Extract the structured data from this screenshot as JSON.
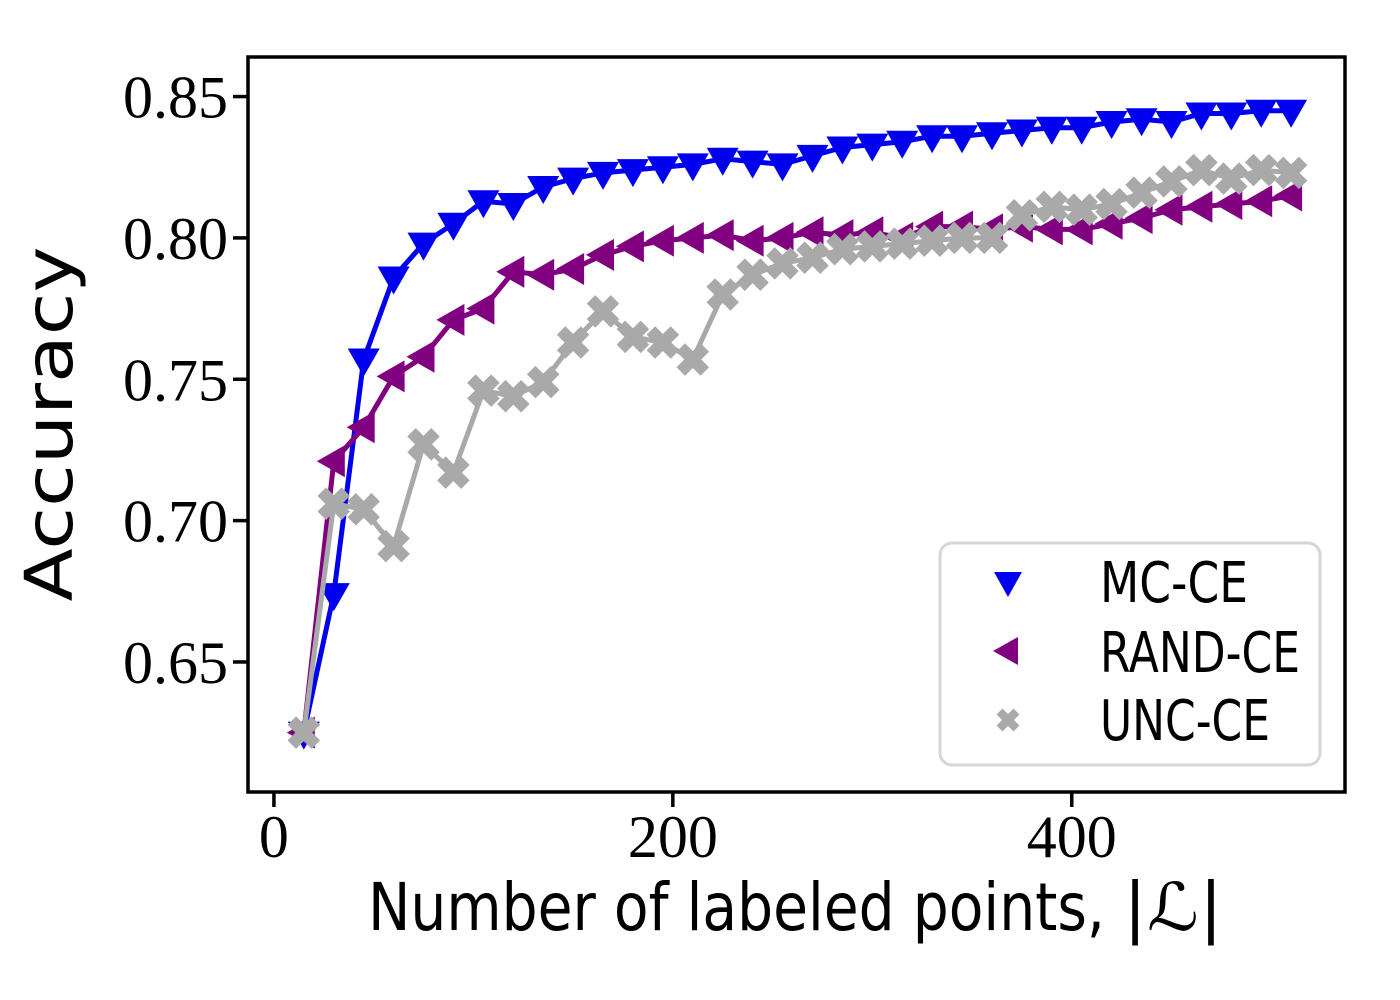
{
  "figure": {
    "background": "#ffffff"
  },
  "chart_data": {
    "type": "line",
    "title": "",
    "xlabel": "Number of labeled points, |ℒ|",
    "xlabel_prefix": "Number of labeled points, ",
    "xlabel_math": "|ℒ|",
    "ylabel": "Accuracy",
    "xlim": [
      -13,
      537
    ],
    "ylim": [
      0.604,
      0.864
    ],
    "x_ticks": [
      0,
      200,
      400
    ],
    "x_tick_labels": [
      "0",
      "200",
      "400"
    ],
    "y_ticks": [
      0.65,
      0.7,
      0.75,
      0.8,
      0.85
    ],
    "y_tick_labels": [
      "0.65",
      "0.70",
      "0.75",
      "0.80",
      "0.85"
    ],
    "grid": false,
    "legend_position": "lower right",
    "frame_color": "#000000",
    "x": [
      15,
      30,
      45,
      60,
      75,
      90,
      105,
      120,
      135,
      150,
      165,
      180,
      195,
      210,
      225,
      240,
      255,
      270,
      285,
      300,
      315,
      330,
      345,
      360,
      375,
      390,
      405,
      420,
      435,
      450,
      465,
      480,
      495,
      510
    ],
    "series": [
      {
        "name": "MC-CE",
        "color": "#0000ee",
        "marker": "triangle-down",
        "values": [
          0.625,
          0.674,
          0.757,
          0.786,
          0.798,
          0.805,
          0.813,
          0.812,
          0.818,
          0.821,
          0.823,
          0.824,
          0.825,
          0.826,
          0.828,
          0.827,
          0.826,
          0.829,
          0.832,
          0.833,
          0.834,
          0.836,
          0.836,
          0.837,
          0.838,
          0.839,
          0.839,
          0.841,
          0.842,
          0.841,
          0.844,
          0.844,
          0.845,
          0.845
        ]
      },
      {
        "name": "RAND-CE",
        "color": "#800080",
        "marker": "triangle-left",
        "values": [
          0.625,
          0.721,
          0.733,
          0.751,
          0.758,
          0.771,
          0.775,
          0.788,
          0.787,
          0.789,
          0.794,
          0.797,
          0.799,
          0.8,
          0.801,
          0.799,
          0.8,
          0.802,
          0.801,
          0.802,
          0.8,
          0.804,
          0.804,
          0.803,
          0.804,
          0.803,
          0.803,
          0.805,
          0.807,
          0.81,
          0.811,
          0.812,
          0.813,
          0.815
        ]
      },
      {
        "name": "UNC-CE",
        "color": "#a9a9a9",
        "marker": "x-filled",
        "values": [
          0.625,
          0.706,
          0.704,
          0.691,
          0.727,
          0.717,
          0.746,
          0.744,
          0.749,
          0.763,
          0.774,
          0.765,
          0.763,
          0.757,
          0.78,
          0.787,
          0.791,
          0.793,
          0.796,
          0.797,
          0.798,
          0.799,
          0.8,
          0.8,
          0.808,
          0.811,
          0.81,
          0.812,
          0.816,
          0.82,
          0.824,
          0.821,
          0.824,
          0.823
        ]
      }
    ]
  }
}
